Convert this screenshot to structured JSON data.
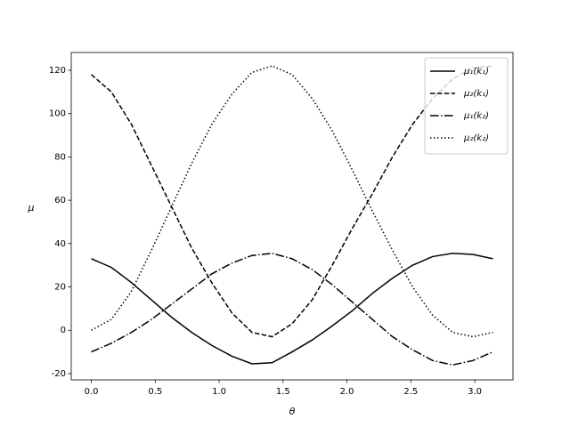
{
  "chart_data": {
    "type": "line",
    "x_label": "θ",
    "y_label": "μ",
    "x": [
      0,
      0.157,
      0.314,
      0.471,
      0.628,
      0.785,
      0.942,
      1.1,
      1.257,
      1.414,
      1.571,
      1.728,
      1.885,
      2.042,
      2.199,
      2.356,
      2.513,
      2.67,
      2.827,
      2.985,
      3.142
    ],
    "series": [
      {
        "name": "μ₁(k₁)",
        "color": "#000000",
        "linestyle": "solid",
        "values": [
          33,
          29,
          22,
          14,
          6,
          -1,
          -7,
          -12,
          -15.5,
          -15,
          -10,
          -4.5,
          2,
          9,
          17,
          24,
          30,
          34,
          35.5,
          35,
          33
        ]
      },
      {
        "name": "μ₂(k₁)",
        "color": "#000000",
        "linestyle": "dashed",
        "values": [
          118,
          110,
          95,
          76,
          57,
          38,
          22,
          8,
          -1,
          -3,
          3,
          14,
          30,
          47,
          63,
          80,
          95,
          107,
          116,
          121,
          122
        ]
      },
      {
        "name": "μ₁(k₂)",
        "color": "#000000",
        "linestyle": "dashdot",
        "values": [
          -10,
          -6,
          -1,
          5,
          12,
          19,
          26,
          31,
          34.5,
          35.5,
          33,
          28,
          21,
          13,
          5,
          -3,
          -9,
          -14,
          -16,
          -14,
          -10
        ]
      },
      {
        "name": "μ₂(k₂)",
        "color": "#000000",
        "linestyle": "dotted",
        "values": [
          0,
          5,
          18,
          37,
          57,
          77,
          95,
          109,
          119,
          122,
          118,
          107,
          92,
          74,
          55,
          37,
          20,
          7,
          -1,
          -3,
          -1
        ]
      }
    ],
    "xlim": [
      -0.157,
      3.299
    ],
    "ylim": [
      -22.9,
      128.2
    ],
    "xticks": [
      {
        "value": 0,
        "label": "0.0"
      },
      0.5,
      {
        "value": 1,
        "label": "1.0"
      },
      1.5,
      {
        "value": 2,
        "label": "2.0"
      },
      2.5,
      {
        "value": 3,
        "label": "3.0"
      }
    ],
    "yticks": [
      -20,
      0,
      20,
      40,
      60,
      80,
      100,
      120
    ],
    "legend": "upper right",
    "grid": false
  }
}
